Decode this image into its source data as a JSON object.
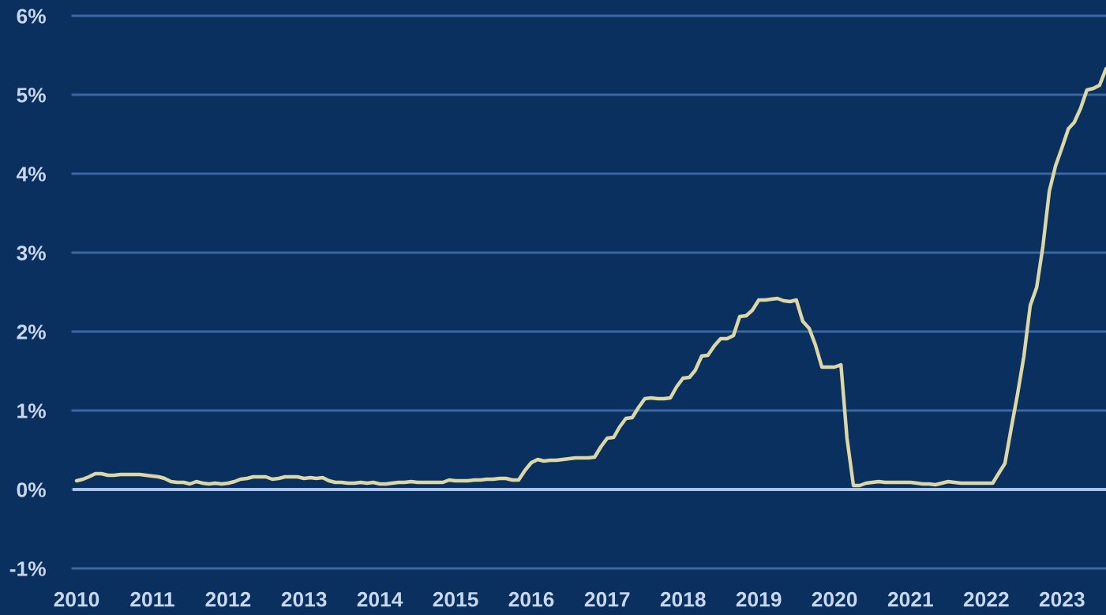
{
  "chart_data": {
    "type": "line",
    "x": [
      "2010-01",
      "2010-02",
      "2010-03",
      "2010-04",
      "2010-05",
      "2010-06",
      "2010-07",
      "2010-08",
      "2010-09",
      "2010-10",
      "2010-11",
      "2010-12",
      "2011-01",
      "2011-02",
      "2011-03",
      "2011-04",
      "2011-05",
      "2011-06",
      "2011-07",
      "2011-08",
      "2011-09",
      "2011-10",
      "2011-11",
      "2011-12",
      "2012-01",
      "2012-02",
      "2012-03",
      "2012-04",
      "2012-05",
      "2012-06",
      "2012-07",
      "2012-08",
      "2012-09",
      "2012-10",
      "2012-11",
      "2012-12",
      "2013-01",
      "2013-02",
      "2013-03",
      "2013-04",
      "2013-05",
      "2013-06",
      "2013-07",
      "2013-08",
      "2013-09",
      "2013-10",
      "2013-11",
      "2013-12",
      "2014-01",
      "2014-02",
      "2014-03",
      "2014-04",
      "2014-05",
      "2014-06",
      "2014-07",
      "2014-08",
      "2014-09",
      "2014-10",
      "2014-11",
      "2014-12",
      "2015-01",
      "2015-02",
      "2015-03",
      "2015-04",
      "2015-05",
      "2015-06",
      "2015-07",
      "2015-08",
      "2015-09",
      "2015-10",
      "2015-11",
      "2015-12",
      "2016-01",
      "2016-02",
      "2016-03",
      "2016-04",
      "2016-05",
      "2016-06",
      "2016-07",
      "2016-08",
      "2016-09",
      "2016-10",
      "2016-11",
      "2016-12",
      "2017-01",
      "2017-02",
      "2017-03",
      "2017-04",
      "2017-05",
      "2017-06",
      "2017-07",
      "2017-08",
      "2017-09",
      "2017-10",
      "2017-11",
      "2017-12",
      "2018-01",
      "2018-02",
      "2018-03",
      "2018-04",
      "2018-05",
      "2018-06",
      "2018-07",
      "2018-08",
      "2018-09",
      "2018-10",
      "2018-11",
      "2018-12",
      "2019-01",
      "2019-02",
      "2019-03",
      "2019-04",
      "2019-05",
      "2019-06",
      "2019-07",
      "2019-08",
      "2019-09",
      "2019-10",
      "2019-11",
      "2019-12",
      "2020-01",
      "2020-02",
      "2020-03",
      "2020-04",
      "2020-05",
      "2020-06",
      "2020-07",
      "2020-08",
      "2020-09",
      "2020-10",
      "2020-11",
      "2020-12",
      "2021-01",
      "2021-02",
      "2021-03",
      "2021-04",
      "2021-05",
      "2021-06",
      "2021-07",
      "2021-08",
      "2021-09",
      "2021-10",
      "2021-11",
      "2021-12",
      "2022-01",
      "2022-02",
      "2022-03",
      "2022-04",
      "2022-05",
      "2022-06",
      "2022-07",
      "2022-08",
      "2022-09",
      "2022-10",
      "2022-11",
      "2022-12",
      "2023-01",
      "2023-02",
      "2023-03",
      "2023-04",
      "2023-05",
      "2023-06",
      "2023-07",
      "2023-08"
    ],
    "series": [
      {
        "color": "#dcd7a6",
        "values": [
          0.11,
          0.13,
          0.16,
          0.2,
          0.2,
          0.18,
          0.18,
          0.19,
          0.19,
          0.19,
          0.19,
          0.18,
          0.17,
          0.16,
          0.14,
          0.1,
          0.09,
          0.09,
          0.07,
          0.1,
          0.08,
          0.07,
          0.08,
          0.07,
          0.08,
          0.1,
          0.13,
          0.14,
          0.16,
          0.16,
          0.16,
          0.13,
          0.14,
          0.16,
          0.16,
          0.16,
          0.14,
          0.15,
          0.14,
          0.15,
          0.11,
          0.09,
          0.09,
          0.08,
          0.08,
          0.09,
          0.08,
          0.09,
          0.07,
          0.07,
          0.08,
          0.09,
          0.09,
          0.1,
          0.09,
          0.09,
          0.09,
          0.09,
          0.09,
          0.12,
          0.11,
          0.11,
          0.11,
          0.12,
          0.12,
          0.13,
          0.13,
          0.14,
          0.14,
          0.12,
          0.12,
          0.24,
          0.34,
          0.38,
          0.36,
          0.37,
          0.37,
          0.38,
          0.39,
          0.4,
          0.4,
          0.4,
          0.41,
          0.54,
          0.65,
          0.66,
          0.79,
          0.9,
          0.91,
          1.04,
          1.15,
          1.16,
          1.15,
          1.15,
          1.16,
          1.3,
          1.41,
          1.42,
          1.51,
          1.69,
          1.7,
          1.82,
          1.91,
          1.91,
          1.95,
          2.19,
          2.2,
          2.27,
          2.4,
          2.4,
          2.41,
          2.42,
          2.39,
          2.38,
          2.4,
          2.13,
          2.04,
          1.83,
          1.55,
          1.55,
          1.55,
          1.58,
          0.65,
          0.05,
          0.05,
          0.08,
          0.09,
          0.1,
          0.09,
          0.09,
          0.09,
          0.09,
          0.09,
          0.08,
          0.07,
          0.07,
          0.06,
          0.08,
          0.1,
          0.09,
          0.08,
          0.08,
          0.08,
          0.08,
          0.08,
          0.08,
          0.2,
          0.33,
          0.77,
          1.21,
          1.68,
          2.33,
          2.56,
          3.08,
          3.78,
          4.1,
          4.33,
          4.57,
          4.65,
          4.83,
          5.06,
          5.08,
          5.12,
          5.33
        ]
      }
    ],
    "xlim": [
      "2009-12-13",
      "2023-08-01"
    ],
    "xticks": [
      "2010",
      "2011",
      "2012",
      "2013",
      "2014",
      "2015",
      "2016",
      "2017",
      "2018",
      "2019",
      "2020",
      "2021",
      "2022",
      "2023"
    ],
    "ylim": [
      -1,
      6
    ],
    "yticks": [
      {
        "value": -1,
        "label": "-1%"
      },
      {
        "value": 0,
        "label": "0%"
      },
      {
        "value": 1,
        "label": "1%"
      },
      {
        "value": 2,
        "label": "2%"
      },
      {
        "value": 3,
        "label": "3%"
      },
      {
        "value": 4,
        "label": "4%"
      },
      {
        "value": 5,
        "label": "5%"
      },
      {
        "value": 6,
        "label": "6%"
      }
    ],
    "grid": "y",
    "ref_lines": [
      {
        "axis": "y",
        "value": 0,
        "color": "#a9c3ea"
      }
    ],
    "line_style": "solid"
  }
}
